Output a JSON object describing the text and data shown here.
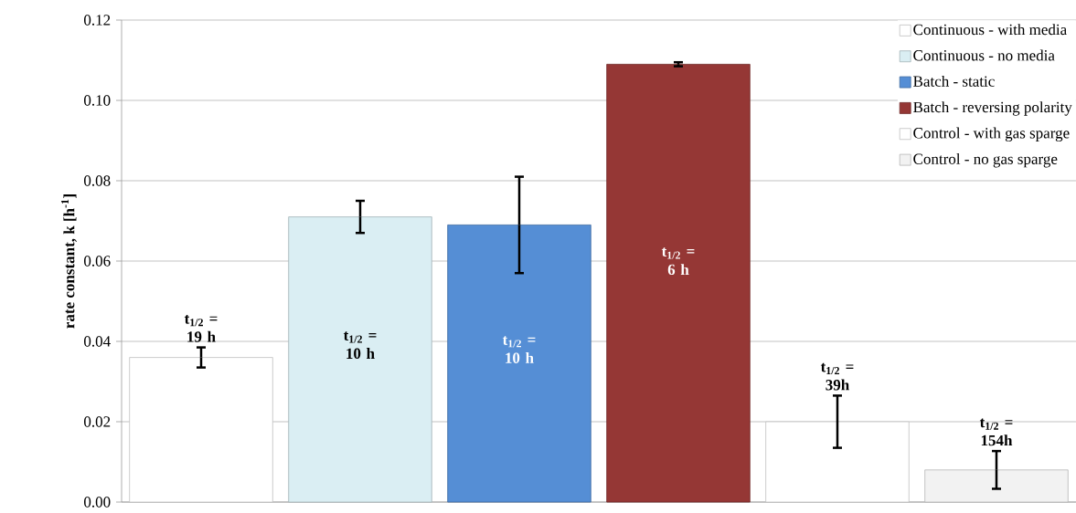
{
  "chart_data": {
    "type": "bar",
    "ylabel": "rate constant, k [h$^{-1}$]",
    "categories": [
      null,
      null,
      null,
      null,
      null,
      null
    ],
    "series": [
      {
        "name": "Continuous - with media",
        "color": "#ffffff",
        "values": [
          0.036,
          null,
          null,
          null,
          null,
          null
        ],
        "errors": [
          0.0025,
          null,
          null,
          null,
          null,
          null
        ],
        "value_labels": [
          "t$_{1/2}$ = 19 h",
          null,
          null,
          null,
          null,
          null
        ]
      },
      {
        "name": "Continuous - no media",
        "color": "#daeef3",
        "values": [
          null,
          0.071,
          null,
          null,
          null,
          null
        ],
        "errors": [
          null,
          0.004,
          null,
          null,
          null,
          null
        ],
        "value_labels": [
          null,
          "t$_{1/2}$ = 10 h",
          null,
          null,
          null,
          null
        ]
      },
      {
        "name": "Batch - static",
        "color": "#558ed5",
        "values": [
          null,
          null,
          0.069,
          null,
          null,
          null
        ],
        "errors": [
          null,
          null,
          0.012,
          null,
          null,
          null
        ],
        "value_labels": [
          null,
          null,
          "t$_{1/2}$ = 10 h",
          null,
          null,
          null
        ]
      },
      {
        "name": "Batch - reversing polarity",
        "color": "#953735",
        "values": [
          null,
          null,
          null,
          0.109,
          null,
          null
        ],
        "errors": [
          null,
          null,
          null,
          0.0005,
          null,
          null
        ],
        "value_labels": [
          null,
          null,
          null,
          "t$_{1/2}$ = 6 h",
          null,
          null
        ]
      },
      {
        "name": "Control - with gas sparge",
        "color": "#ffffff",
        "values": [
          null,
          null,
          null,
          null,
          0.02,
          null
        ],
        "errors": [
          null,
          null,
          null,
          null,
          0.0065,
          null
        ],
        "value_labels": [
          null,
          null,
          null,
          null,
          "t$_{1/2}$ = 39h",
          null
        ]
      },
      {
        "name": "Control - no gas sparge",
        "color": "#f2f2f2",
        "values": [
          null,
          null,
          null,
          null,
          null,
          0.008
        ],
        "errors": [
          null,
          null,
          null,
          null,
          null,
          0.0047
        ],
        "value_labels": [
          null,
          null,
          null,
          null,
          null,
          "t$_{1/2}$ = 154h"
        ]
      }
    ],
    "ylim": [
      0,
      0.12
    ],
    "yticks": [
      {
        "value": 0,
        "label": "0.00"
      },
      {
        "value": 0.02,
        "label": "0.02"
      },
      {
        "value": 0.04,
        "label": "0.04"
      },
      {
        "value": 0.06,
        "label": "0.06"
      },
      {
        "value": 0.08,
        "label": "0.08"
      },
      {
        "value": 0.1,
        "label": "0.10"
      },
      {
        "value": 0.12,
        "label": "0.12"
      }
    ],
    "grid": "y",
    "legend": "top right"
  }
}
